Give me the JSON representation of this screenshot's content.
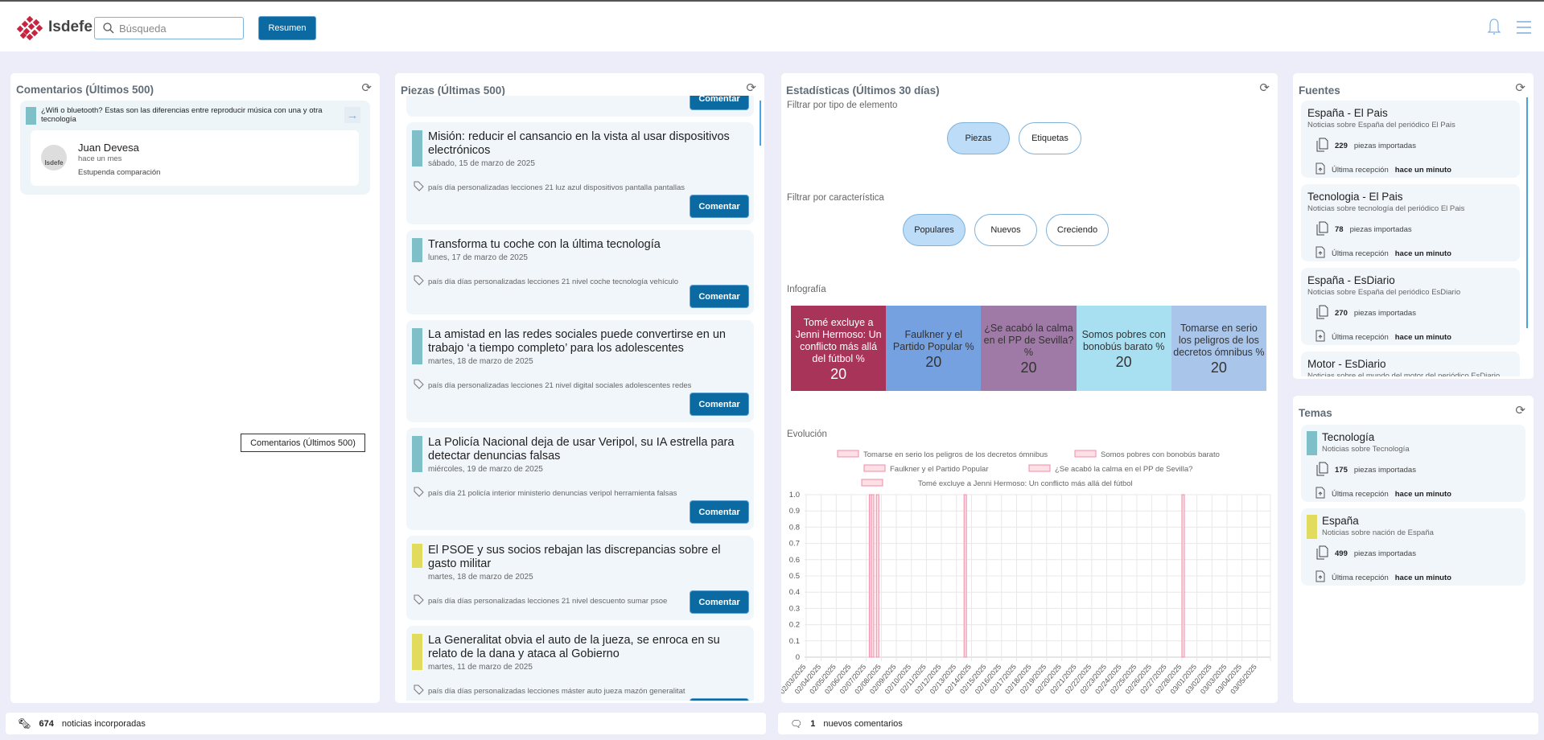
{
  "header": {
    "logo_text": "Isdefe",
    "search_placeholder": "Búsqueda",
    "resumen_label": "Resumen"
  },
  "comentarios": {
    "title": "Comentarios (Últimos 500)",
    "items": [
      {
        "article": "¿Wifi o bluetooth? Estas son las diferencias entre reproducir música con una y otra tecnología",
        "author": "Juan Devesa",
        "avatar_text": "Isdefe",
        "time": "hace un mes",
        "text": "Estupenda comparación"
      }
    ],
    "tooltip": "Comentarios (Últimos 500)"
  },
  "piezas": {
    "title": "Piezas (Últimas 500)",
    "comment_label": "Comentar",
    "items": [
      {
        "title": "Misión: reducir el cansancio en la vista al usar dispositivos electrónicos",
        "date": "sábado, 15 de marzo de 2025",
        "tags": "país día personalizadas lecciones 21 luz azul dispositivos pantalla pantallas",
        "color": "#7fbfc8"
      },
      {
        "title": "Transforma tu coche con la última tecnología",
        "date": "lunes, 17 de marzo de 2025",
        "tags": "país día días personalizadas lecciones 21 nivel coche tecnología vehículo",
        "color": "#7fbfc8"
      },
      {
        "title": "La amistad en las redes sociales puede convertirse en un trabajo ‘a tiempo completo’ para los adolescentes",
        "date": "martes, 18 de marzo de 2025",
        "tags": "país día personalizadas lecciones 21 nivel digital sociales adolescentes redes",
        "color": "#7fbfc8"
      },
      {
        "title": "La Policía Nacional deja de usar Veripol, su IA estrella para detectar denuncias falsas",
        "date": "miércoles, 19 de marzo de 2025",
        "tags": "país día 21 policía interior ministerio denuncias veripol herramienta falsas",
        "color": "#7fbfc8"
      },
      {
        "title": "El PSOE y sus socios rebajan las discrepancias sobre el gasto militar",
        "date": "martes, 18 de marzo de 2025",
        "tags": "país día días personalizadas lecciones 21 nivel descuento sumar psoe",
        "color": "#e2dc5e"
      },
      {
        "title": "La Generalitat obvia el auto de la jueza, se enroca en su relato de la dana y ataca al Gobierno",
        "date": "martes, 11 de marzo de 2025",
        "tags": "país día días personalizadas lecciones máster auto jueza mazón generalitat",
        "color": "#e2dc5e"
      }
    ]
  },
  "estadisticas": {
    "title": "Estadísticas (Últimos 30 días)",
    "filter_type_label": "Filtrar por tipo de elemento",
    "type_options": [
      {
        "label": "Piezas",
        "selected": true
      },
      {
        "label": "Etiquetas",
        "selected": false
      }
    ],
    "filter_char_label": "Filtrar por característica",
    "char_options": [
      {
        "label": "Populares",
        "selected": true
      },
      {
        "label": "Nuevos",
        "selected": false
      },
      {
        "label": "Creciendo",
        "selected": false
      }
    ],
    "infografia_label": "Infografía",
    "evolucion_label": "Evolución"
  },
  "chart_data": [
    {
      "type": "treemap",
      "title": "Infografía",
      "items": [
        {
          "label": "Tomé excluye a Jenni Hermoso: Un conflicto más allá del fútbol %",
          "value": 20,
          "color": "#a8345a"
        },
        {
          "label": "Faulkner y el Partido Popular %",
          "value": 20,
          "color": "#76a1e0"
        },
        {
          "label": "¿Se acabó la calma en el PP de Sevilla? %",
          "value": 20,
          "color": "#a07aa6"
        },
        {
          "label": "Somos pobres con bonobús barato %",
          "value": 20,
          "color": "#a8e0f2"
        },
        {
          "label": "Tomarse en serio los peligros de los decretos ómnibus %",
          "value": 20,
          "color": "#a9c6ea"
        }
      ]
    },
    {
      "type": "bar",
      "title": "Evolución",
      "ylim": [
        0,
        1
      ],
      "yticks": [
        "0",
        "0.1",
        "0.2",
        "0.3",
        "0.4",
        "0.5",
        "0.6",
        "0.7",
        "0.8",
        "0.9",
        "1.0"
      ],
      "x_ticks": [
        "02/03/2025",
        "02/04/2025",
        "02/05/2025",
        "02/06/2025",
        "02/07/2025",
        "02/08/2025",
        "02/09/2025",
        "02/10/2025",
        "02/11/2025",
        "02/12/2025",
        "02/13/2025",
        "02/14/2025",
        "02/15/2025",
        "02/16/2025",
        "02/17/2025",
        "02/18/2025",
        "02/19/2025",
        "02/20/2025",
        "02/21/2025",
        "02/22/2025",
        "02/23/2025",
        "02/24/2025",
        "02/25/2025",
        "02/26/2025",
        "02/27/2025",
        "02/28/2025",
        "03/01/2025",
        "03/02/2025",
        "03/03/2025",
        "03/04/2025",
        "03/05/2025"
      ],
      "legend": [
        "Tomarse en serio los peligros de los decretos ómnibus",
        "Somos pobres con bonobús barato",
        "Faulkner y el Partido Popular",
        "¿Se acabó la calma en el PP de Sevilla?",
        "Tomé excluye a Jenni Hermoso: Un conflicto más allá del fútbol"
      ],
      "legend_position": "top",
      "series": [
        {
          "name": "Tomé excluye a Jenni Hermoso: Un conflicto más allá del fútbol",
          "x": "02/07/2025 06:40",
          "y": 1
        },
        {
          "name": "Faulkner y el Partido Popular",
          "x": "02/07/2025 10:00",
          "y": 1
        },
        {
          "name": "¿Se acabó la calma en el PP de Sevilla?",
          "x": "02/07/2025 18:00",
          "y": 1
        },
        {
          "name": "Somos pobres con bonobús barato",
          "x": "02/13/2025 14:00",
          "y": 1
        },
        {
          "name": "Tomarse en serio los peligros de los decretos ómnibus",
          "x": "02/28/2025 02:00",
          "y": 1
        }
      ],
      "bar_color": "#f48aa8",
      "bar_fill": "#fde0e6"
    }
  ],
  "fuentes": {
    "title": "Fuentes",
    "count_suffix": "piezas importadas",
    "last_label": "Última recepción",
    "items": [
      {
        "name": "España - El Pais",
        "desc": "Noticias sobre España del periódico El Pais",
        "count": "229",
        "last": "hace un minuto"
      },
      {
        "name": "Tecnologia - El Pais",
        "desc": "Noticias sobre tecnología del periódico El Pais",
        "count": "78",
        "last": "hace un minuto"
      },
      {
        "name": "España - EsDiario",
        "desc": "Noticias sobre España del periódico EsDiario",
        "count": "270",
        "last": "hace un minuto"
      },
      {
        "name": "Motor - EsDiario",
        "desc": "Noticias sobre el mundo del motor del periódico EsDiario"
      }
    ]
  },
  "temas": {
    "title": "Temas",
    "items": [
      {
        "name": "Tecnología",
        "desc": "Noticias sobre Tecnología",
        "count": "175",
        "last": "hace un minuto",
        "color": "#7fbfc8"
      },
      {
        "name": "España",
        "desc": "Noticias sobre nación de España",
        "count": "499",
        "last": "hace un minuto",
        "color": "#e2dc5e"
      }
    ]
  },
  "footer": {
    "news_count": "674",
    "news_label": "noticias incorporadas",
    "comments_count": "1",
    "comments_label": "nuevos comentarios"
  }
}
